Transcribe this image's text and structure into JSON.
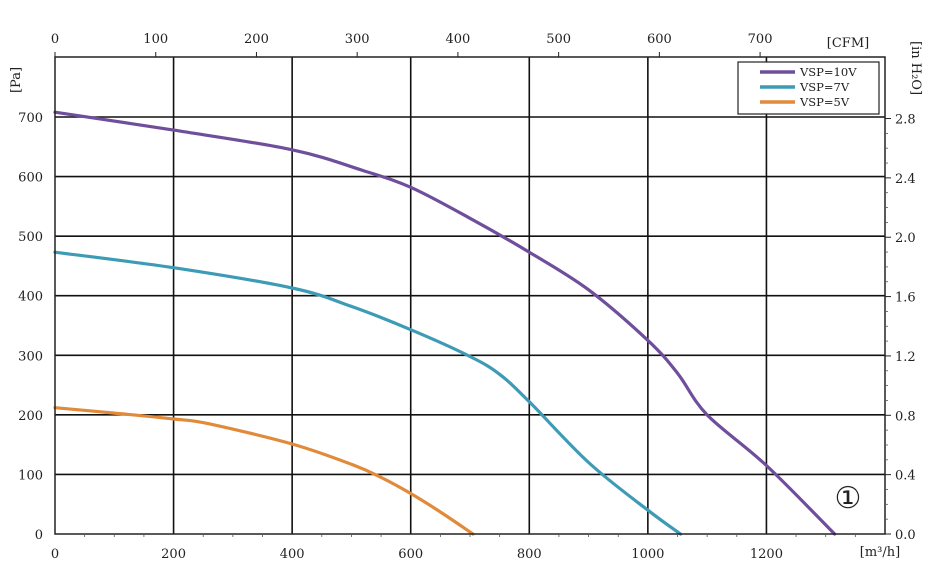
{
  "chart_data": {
    "type": "line",
    "x_bottom": {
      "label": "[m³/h]",
      "ticks": [
        0,
        200,
        400,
        600,
        800,
        1000,
        1200
      ],
      "range": [
        0,
        1400
      ]
    },
    "x_top": {
      "label": "[CFM]",
      "ticks": [
        0,
        100,
        200,
        300,
        400,
        500,
        600,
        700
      ]
    },
    "y_left": {
      "label": "[Pa]",
      "ticks": [
        "0",
        "100",
        "200",
        "300",
        "400",
        "500",
        "600",
        "700"
      ],
      "range": [
        0,
        800
      ]
    },
    "y_right": {
      "label": "[in H₂O]",
      "ticks": [
        "0.0",
        "0.4",
        "0.8",
        "1.2",
        "1.6",
        "2.0",
        "2.4",
        "2.8"
      ]
    },
    "grid": true,
    "legend_position": "top-right",
    "annotation": "①",
    "series": [
      {
        "name": "VSP=10V",
        "color": "#6f4e9c",
        "points": [
          [
            0,
            708
          ],
          [
            200,
            678
          ],
          [
            400,
            645
          ],
          [
            520,
            610
          ],
          [
            600,
            582
          ],
          [
            700,
            530
          ],
          [
            800,
            473
          ],
          [
            900,
            410
          ],
          [
            1000,
            325
          ],
          [
            1050,
            270
          ],
          [
            1100,
            200
          ],
          [
            1200,
            115
          ],
          [
            1315,
            0
          ]
        ]
      },
      {
        "name": "VSP=7V",
        "color": "#3d9bb5",
        "points": [
          [
            0,
            473
          ],
          [
            200,
            447
          ],
          [
            400,
            413
          ],
          [
            500,
            382
          ],
          [
            600,
            343
          ],
          [
            700,
            298
          ],
          [
            750,
            268
          ],
          [
            800,
            222
          ],
          [
            900,
            120
          ],
          [
            1000,
            40
          ],
          [
            1055,
            0
          ]
        ]
      },
      {
        "name": "VSP=5V",
        "color": "#e08a3a",
        "points": [
          [
            0,
            212
          ],
          [
            100,
            203
          ],
          [
            200,
            193
          ],
          [
            260,
            185
          ],
          [
            400,
            151
          ],
          [
            500,
            117
          ],
          [
            550,
            95
          ],
          [
            600,
            68
          ],
          [
            650,
            37
          ],
          [
            705,
            0
          ]
        ]
      }
    ]
  }
}
